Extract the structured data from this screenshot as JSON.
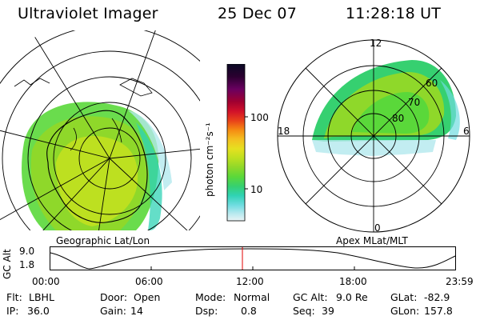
{
  "header": {
    "title": "Ultraviolet Imager",
    "date": "25 Dec 07",
    "time": "11:28:18 UT"
  },
  "left_panel": {
    "caption": "Geographic Lat/Lon"
  },
  "right_panel": {
    "caption": "Apex MLat/MLT",
    "mlt_labels": [
      "12",
      "18",
      "6",
      "0"
    ],
    "lat_labels": [
      "60",
      "70",
      "80"
    ]
  },
  "colorbar": {
    "unit_label": "photon cm⁻²s⁻¹",
    "ticks": [
      "100",
      "10"
    ],
    "colors": [
      "#0a0a24",
      "#2a0030",
      "#6a0060",
      "#a00030",
      "#d0102a",
      "#e8401a",
      "#f58a12",
      "#f4bf20",
      "#e6e020",
      "#bde020",
      "#8fd82a",
      "#5ad83a",
      "#36d070",
      "#30d3b5",
      "#6fdce0",
      "#b3e8ee",
      "#eaf4f6"
    ]
  },
  "timeline": {
    "axis_label": "GC Alt",
    "alt_ticks": [
      "9.0",
      "1.8"
    ],
    "time_ticks": [
      "00:00",
      "06:00",
      "12:00",
      "18:00",
      "23:59"
    ],
    "marker_color": "#e00000"
  },
  "info": {
    "row1": [
      {
        "key": "Flt:",
        "value": "LBHL"
      },
      {
        "key": "Door:",
        "value": "Open"
      },
      {
        "key": "Mode:",
        "value": "Normal"
      },
      {
        "key": "GC Alt:",
        "value": "9.0 Re"
      },
      {
        "key": "GLat:",
        "value": "-82.9"
      }
    ],
    "row2": [
      {
        "key": "IP:",
        "value": "36.0"
      },
      {
        "key": "Gain:",
        "value": "14"
      },
      {
        "key": "Dsp:",
        "value": "0.8"
      },
      {
        "key": "Seq:",
        "value": "39"
      },
      {
        "key": "GLon:",
        "value": "157.8"
      }
    ]
  }
}
